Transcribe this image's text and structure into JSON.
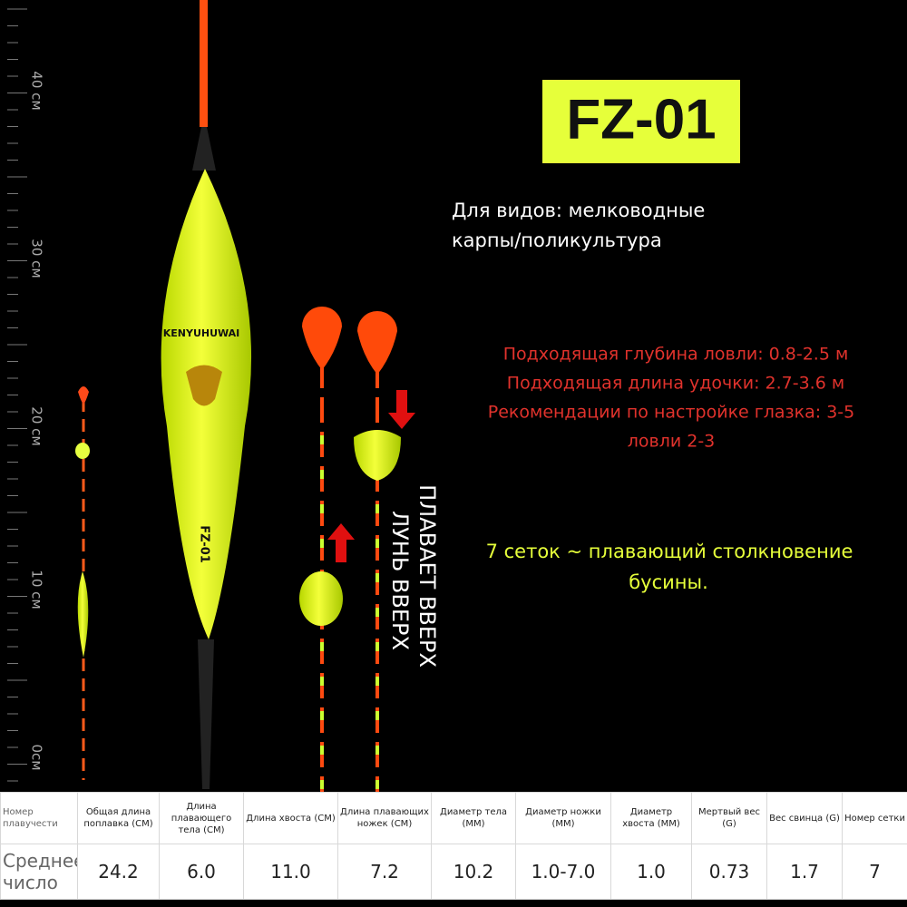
{
  "ruler": [
    "40 см",
    "30 см",
    "20 см",
    "10 см",
    "0см"
  ],
  "float": {
    "brand": "KENYUHUWAI",
    "model": "FZ-01"
  },
  "labels": [
    "ПЛАВАЕТ ВВЕРХ",
    "ЛУНЬ ВВЕРХ"
  ],
  "title": "FZ-01",
  "species": [
    "Для видов: мелководные",
    "карпы/поликультура"
  ],
  "specs": [
    "Подходящая глубина ловли: 0.8-2.5 м",
    "Подходящая длина удочки: 2.7-3.6 м",
    "Рекомендации по настройке глазка: 3-5",
    "ловли 2-3"
  ],
  "feature": [
    "7 сеток ~ плавающий столкновение",
    "бусины."
  ],
  "table": {
    "header": [
      "Номер плавучести",
      "Общая длина поплавка (CM)",
      "Длина плавающего тела (CM)",
      "Длина хвоста (CM)",
      "Длина плавающих ножек (CM)",
      "Диаметр тела (MM)",
      "Диаметр ножки (MM)",
      "Диаметр хвоста (MM)",
      "Мертвый вес (G)",
      "Вес свинца (G)",
      "Номер сетки"
    ],
    "rows": [
      [
        "Среднее число",
        "24.2",
        "6.0",
        "11.0",
        "7.2",
        "10.2",
        "1.0-7.0",
        "1.0",
        "0.73",
        "1.7",
        "7"
      ]
    ]
  }
}
